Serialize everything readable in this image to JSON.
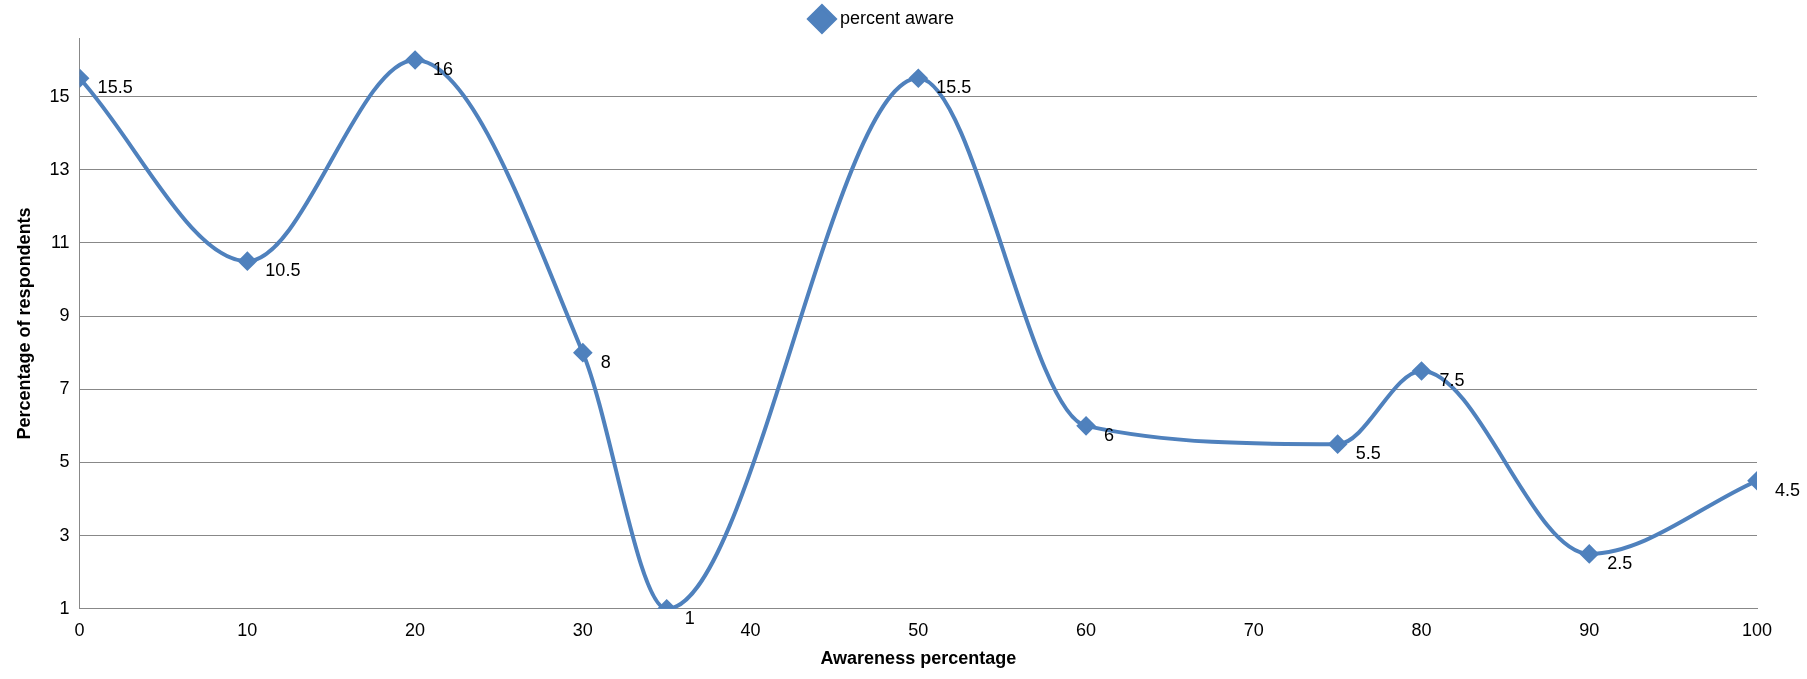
{
  "chart_data": {
    "type": "line",
    "xlabel": "Awareness percentage",
    "ylabel": "Percentage of respondents",
    "x": [
      0,
      10,
      20,
      30,
      35,
      50,
      60,
      75,
      80,
      90,
      100
    ],
    "series": [
      {
        "name": "percent aware",
        "color": "#4f81bd",
        "values": [
          15.5,
          10.5,
          16,
          8,
          1,
          15.5,
          6,
          5.5,
          7.5,
          2.5,
          4.5
        ]
      }
    ],
    "xlim": [
      0,
      100
    ],
    "xticks": [
      0,
      10,
      20,
      30,
      40,
      50,
      60,
      70,
      80,
      90,
      100
    ],
    "ylim": [
      1,
      16.6
    ],
    "yticks": [
      1,
      3,
      5,
      7,
      9,
      11,
      13,
      15
    ],
    "grid": "y",
    "legend": "top",
    "marker": "diamond",
    "line_style": "solid",
    "data_labels": true
  }
}
